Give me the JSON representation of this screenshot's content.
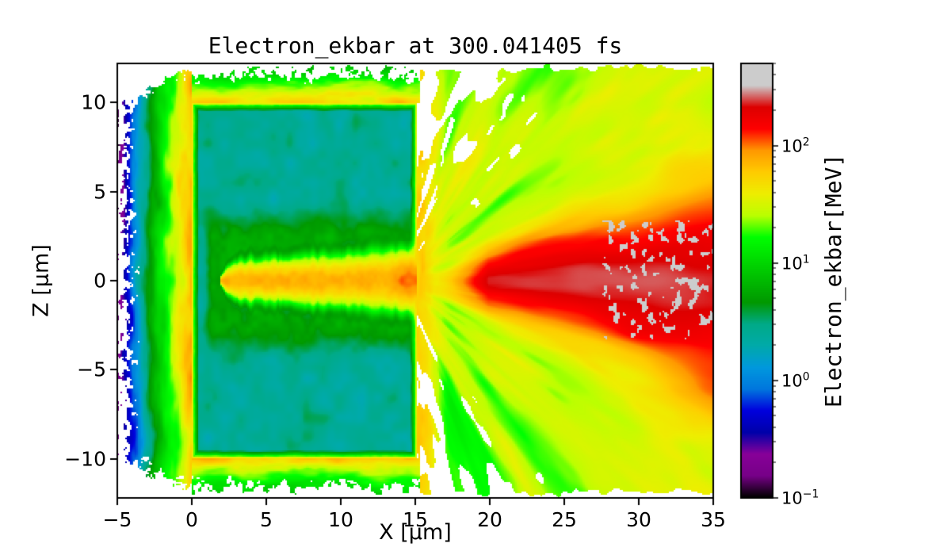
{
  "chart_data": {
    "type": "heatmap",
    "title": "Electron_ekbar at 300.041405 fs",
    "time_fs": 300.041405,
    "xlabel": "X [μm]",
    "ylabel": "Z [μm]",
    "x_range_um": [
      -5,
      35
    ],
    "z_range_um": [
      -12.2,
      12.2
    ],
    "x_ticks": [
      -5,
      0,
      5,
      10,
      15,
      20,
      25,
      30,
      35
    ],
    "z_ticks": [
      -10,
      -5,
      0,
      5,
      10
    ],
    "grid": false,
    "colorbar": {
      "label": "Electron_ekbar[MeV]",
      "scale": "log",
      "tick_exponents": [
        -1,
        0,
        1,
        2
      ],
      "vmin_mev": 0.1,
      "vmax_mev": 500,
      "colormap": "nipy_spectral",
      "stops": [
        [
          0.0,
          0,
          0,
          0
        ],
        [
          0.05,
          119,
          0,
          136
        ],
        [
          0.1,
          136,
          0,
          153
        ],
        [
          0.15,
          0,
          0,
          170
        ],
        [
          0.2,
          0,
          0,
          221
        ],
        [
          0.25,
          0,
          119,
          221
        ],
        [
          0.3,
          0,
          153,
          221
        ],
        [
          0.35,
          0,
          170,
          170
        ],
        [
          0.4,
          0,
          170,
          136
        ],
        [
          0.45,
          0,
          153,
          0
        ],
        [
          0.5,
          0,
          187,
          0
        ],
        [
          0.55,
          0,
          221,
          0
        ],
        [
          0.6,
          0,
          255,
          0
        ],
        [
          0.65,
          187,
          255,
          0
        ],
        [
          0.7,
          238,
          238,
          0
        ],
        [
          0.75,
          255,
          204,
          0
        ],
        [
          0.8,
          255,
          153,
          0
        ],
        [
          0.85,
          255,
          0,
          0
        ],
        [
          0.9,
          221,
          0,
          0
        ],
        [
          0.95,
          204,
          204,
          204
        ],
        [
          1.0,
          204,
          204,
          204
        ]
      ]
    },
    "features": [
      {
        "name": "target-slab",
        "shape": "rect",
        "x_um": [
          0,
          15.15
        ],
        "z_um": [
          -10,
          10
        ],
        "value_mev": 2.5,
        "description": "cold solid target bulk, teal"
      },
      {
        "name": "channel-halo",
        "shape": "band",
        "x_um": [
          1,
          15.15
        ],
        "z_um": [
          -4.5,
          4.5
        ],
        "value_mev": 5.4,
        "description": "heated dark-green sheath surrounding the drilled channel"
      },
      {
        "name": "drilled-channel",
        "shape": "channel",
        "x_um": [
          2.6,
          15.15
        ],
        "half_width_um": 1.0,
        "core_value_mev": 66,
        "description": "laser-drilled on-axis plasma channel, yellow-orange with wiggly walls"
      },
      {
        "name": "front-plume",
        "shape": "plume",
        "x_um": [
          -5.4,
          0
        ],
        "z_um": [
          -12,
          12
        ],
        "value_at_target_mev": 55,
        "value_at_front_mev": 0.1,
        "description": "expanding front-side pre-plasma, orange at target falling to purple/blue specks at x=-5"
      },
      {
        "name": "edge-sheath",
        "shape": "band",
        "value_mev": 50,
        "description": "hot orange sheath wrapping target top, bottom and rear edges"
      },
      {
        "name": "rear-jet-fan",
        "shape": "fan",
        "x_um": [
          15.15,
          35
        ],
        "half_angle_deg": 50,
        "core_value_mev": 215,
        "wing_value_mev": 22,
        "max_value_mev": 460,
        "description": "filamentary hot-electron jet fan behind target, dark-red core with saturated gray speckles beyond x~28"
      }
    ]
  }
}
